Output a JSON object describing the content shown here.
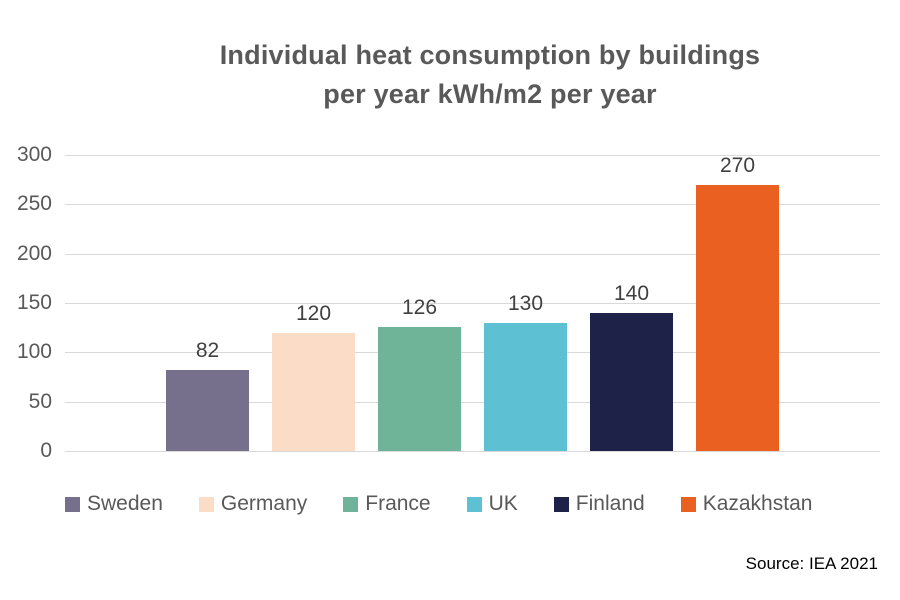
{
  "title": {
    "line1": "Individual heat consumption by buildings",
    "line2": "per year kWh/m2 per year"
  },
  "source": "Source: IEA 2021",
  "chart_data": {
    "type": "bar",
    "title": "Individual heat consumption by buildings per year kWh/m2 per year",
    "categories": [
      "Sweden",
      "Germany",
      "France",
      "UK",
      "Finland",
      "Kazakhstan"
    ],
    "values": [
      82,
      120,
      126,
      130,
      140,
      270
    ],
    "colors": [
      "#77708C",
      "#FBDCC6",
      "#6FB399",
      "#5EC1D3",
      "#1F2248",
      "#EA6020"
    ],
    "xlabel": "",
    "ylabel": "",
    "ylim": [
      0,
      300
    ],
    "yticks": [
      0,
      50,
      100,
      150,
      200,
      250,
      300
    ],
    "grid": true,
    "value_labels": true,
    "legend_position": "bottom"
  },
  "colors": {
    "title_text": "#595959",
    "axis_text": "#595959",
    "value_label_text": "#404040",
    "gridline": "#D9D9D9",
    "background": "#FFFFFF"
  }
}
